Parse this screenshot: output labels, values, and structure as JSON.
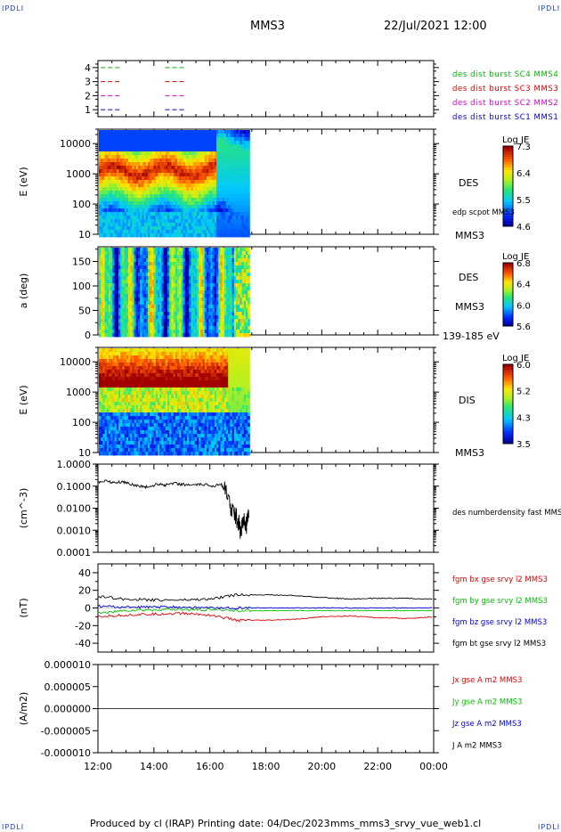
{
  "corner_label": "IPDLI",
  "header": {
    "spacecraft": "MMS3",
    "datetime": "22/Jul/2021 12:00"
  },
  "footer": {
    "produced_by": "Produced by cl (IRAP)",
    "printing_date": "Printing date: 04/Dec/2023",
    "product": "mms_mms3_srvy_vue_web1.cl"
  },
  "colors": {
    "c1": "#0000c8",
    "c2": "#d400d4",
    "c3": "#d40000",
    "c4": "#00b400",
    "bx": "#e00000",
    "by": "#00c000",
    "bz": "#0000e0",
    "bt": "#000000"
  },
  "chart_data": [
    {
      "type": "table",
      "panel": "burst_availability",
      "y_ticks": [
        "4",
        "3",
        "2",
        "1"
      ],
      "rows": [
        {
          "name": "des dist burst SC1 MMS1",
          "y": 1,
          "color": "c1"
        },
        {
          "name": "des dist burst SC2 MMS2",
          "y": 2,
          "color": "c2"
        },
        {
          "name": "des dist burst SC3 MMS3",
          "y": 3,
          "color": "c3"
        },
        {
          "name": "des dist burst SC4 MMS4",
          "y": 4,
          "color": "c4"
        }
      ],
      "segments_hours": [
        [
          0.1,
          0.85
        ],
        [
          2.4,
          3.15
        ]
      ]
    },
    {
      "type": "heatmap",
      "panel": "des_energy",
      "ylabel": "E (eV)",
      "yscale": "log",
      "ylim": [
        10,
        30000
      ],
      "y_ticks": [
        "10",
        "100",
        "1000",
        "10000"
      ],
      "species": "DES",
      "spacecraft": "MMS3",
      "extra_label": "edp scpot MMS3",
      "colorbar": {
        "title": "Log JE",
        "ticks": [
          "7.3",
          "6.4",
          "5.5",
          "4.6"
        ],
        "range": [
          4.6,
          7.3
        ]
      },
      "data_end_hours": 5.4
    },
    {
      "type": "heatmap",
      "panel": "des_pitch",
      "ylabel": "a (deg)",
      "ylim": [
        0,
        180
      ],
      "y_ticks": [
        "0",
        "50",
        "100",
        "150"
      ],
      "species": "DES",
      "spacecraft": "MMS3",
      "energy_range": "139-185 eV",
      "colorbar": {
        "title": "Log JE",
        "ticks": [
          "6.8",
          "6.4",
          "6.0",
          "5.6"
        ],
        "range": [
          5.6,
          6.8
        ]
      },
      "data_end_hours": 5.4
    },
    {
      "type": "heatmap",
      "panel": "dis_energy",
      "ylabel": "E (eV)",
      "yscale": "log",
      "ylim": [
        10,
        30000
      ],
      "y_ticks": [
        "10",
        "100",
        "1000",
        "10000"
      ],
      "species": "DIS",
      "spacecraft": "MMS3",
      "colorbar": {
        "title": "Log JE",
        "ticks": [
          "6.0",
          "5.2",
          "4.3",
          "3.5"
        ],
        "range": [
          3.5,
          6.0
        ]
      },
      "data_end_hours": 5.4
    },
    {
      "type": "line",
      "panel": "density",
      "ylabel": "(cm^-3)",
      "yscale": "log",
      "ylim": [
        0.0001,
        1.0
      ],
      "y_ticks": [
        "1.0000",
        "0.1000",
        "0.0100",
        "0.0010",
        "0.0001"
      ],
      "series": [
        {
          "name": "des numberdensity fast MMS3",
          "color": "#000000"
        }
      ],
      "x_hours": [
        0.0,
        0.3,
        0.6,
        0.9,
        1.2,
        1.5,
        1.8,
        2.2,
        2.4,
        2.7,
        3.0,
        3.4,
        3.8,
        4.1,
        4.4,
        4.6,
        4.8,
        5.0,
        5.1,
        5.2,
        5.3,
        5.4
      ],
      "values": [
        0.15,
        0.18,
        0.14,
        0.16,
        0.12,
        0.1,
        0.09,
        0.13,
        0.11,
        0.14,
        0.12,
        0.11,
        0.12,
        0.1,
        0.13,
        0.04,
        0.008,
        0.003,
        0.0009,
        0.0025,
        0.0015,
        0.004
      ]
    },
    {
      "type": "line",
      "panel": "fgm",
      "ylabel": "(nT)",
      "ylim": [
        -50,
        50
      ],
      "y_ticks": [
        "40",
        "20",
        "0",
        "-20",
        "-40"
      ],
      "x_hours": [
        0,
        1,
        2,
        3,
        4,
        5,
        6,
        7,
        8,
        9,
        10,
        11,
        12
      ],
      "series": [
        {
          "name": "fgm bx gse srvy l2 MMS3",
          "color": "bx",
          "values": [
            -10,
            -8,
            -7,
            -6,
            -8,
            -14,
            -14,
            -13,
            -10,
            -9,
            -11,
            -12,
            -10
          ]
        },
        {
          "name": "fgm by gse srvy l2 MMS3",
          "color": "by",
          "values": [
            -6,
            -3,
            -2,
            -2,
            -2,
            -3,
            -3,
            -3,
            -3,
            -3,
            -3,
            -3,
            -3
          ]
        },
        {
          "name": "fgm bz gse srvy l2 MMS3",
          "color": "bz",
          "values": [
            2,
            1,
            1,
            1,
            0,
            0,
            0,
            0,
            0,
            0,
            0,
            0,
            0
          ]
        },
        {
          "name": "fgm bt gse srvy l2 MMS3",
          "color": "bt",
          "values": [
            13,
            10,
            9,
            9,
            10,
            15,
            15,
            14,
            12,
            10,
            11,
            11,
            10
          ]
        }
      ]
    },
    {
      "type": "line",
      "panel": "current",
      "ylabel": "(A/m2)",
      "ylim": [
        -1e-05,
        1e-05
      ],
      "y_ticks": [
        "0.000010",
        "0.000005",
        "0.000000",
        "-0.000005",
        "-0.000010"
      ],
      "series": [
        {
          "name": "Jx gse A m2 MMS3",
          "color": "bx"
        },
        {
          "name": "Jy gse A m2 MMS3",
          "color": "by"
        },
        {
          "name": "Jz gse A m2 MMS3",
          "color": "bz"
        },
        {
          "name": "J A m2 MMS3",
          "color": "bt"
        }
      ],
      "values": [
        0.0
      ]
    }
  ],
  "x_axis": {
    "range_hours": [
      0,
      12
    ],
    "tick_labels": [
      "12:00",
      "14:00",
      "16:00",
      "18:00",
      "20:00",
      "22:00",
      "00:00"
    ]
  }
}
